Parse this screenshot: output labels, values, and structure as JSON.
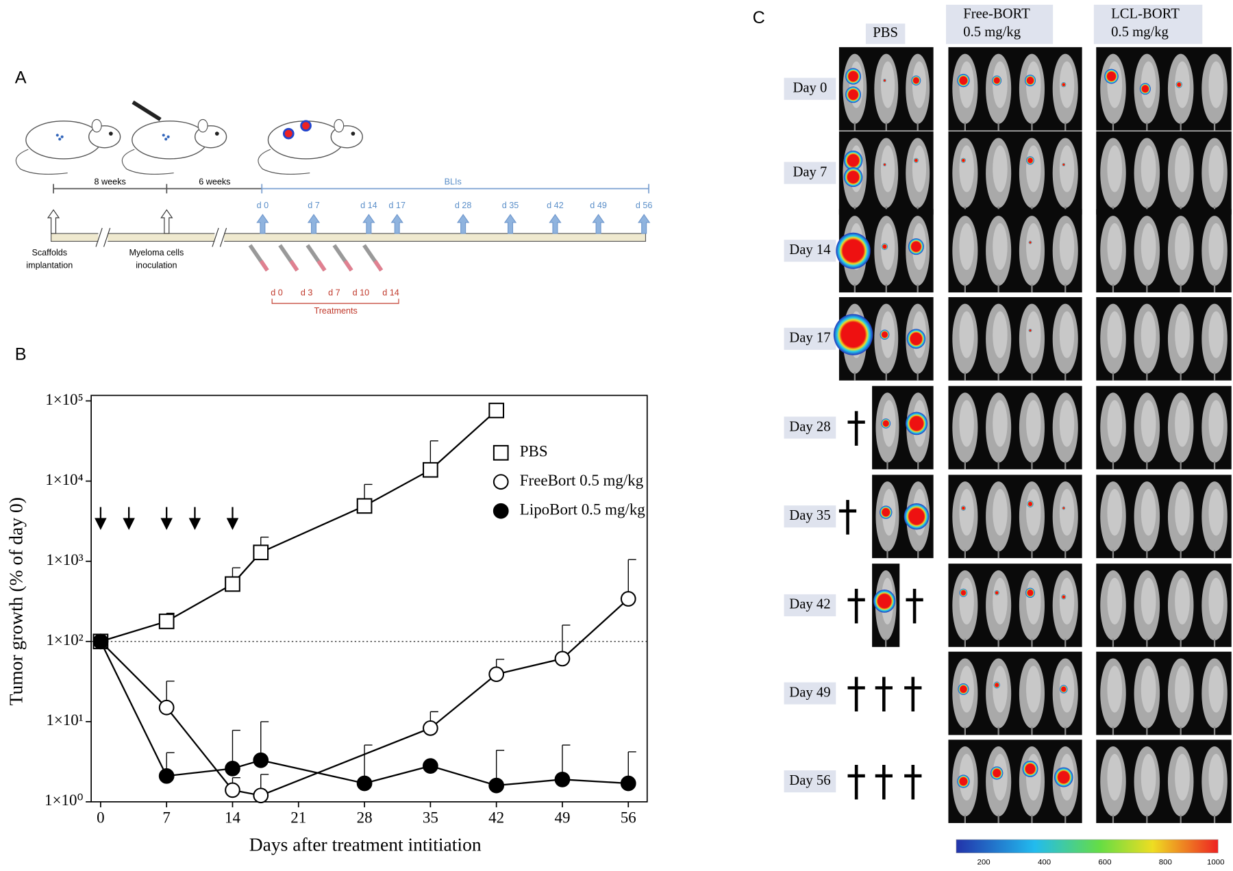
{
  "panel_a": {
    "label": "A",
    "durations": [
      "8 weeks",
      "6 weeks"
    ],
    "bli_label": "BLIs",
    "bli_days": [
      "d 0",
      "d 7",
      "d 14",
      "d 17",
      "d 28",
      "d 35",
      "d 42",
      "d 49",
      "d 56"
    ],
    "events": [
      {
        "lines": [
          "Scaffolds",
          "implantation"
        ]
      },
      {
        "lines": [
          "Myeloma cells",
          "inoculation"
        ]
      }
    ],
    "treatment_days": [
      "d 0",
      "d 3",
      "d 7",
      "d 10",
      "d 14"
    ],
    "treatments_label": "Treatments"
  },
  "chart_data": {
    "type": "line",
    "panel_label": "B",
    "x_label": "Days after treatment intitiation",
    "y_label": "Tumor growth (% of day 0)",
    "log_y": true,
    "xlim": [
      -1,
      58
    ],
    "ylim": [
      1,
      100000
    ],
    "xticks": [
      0,
      7,
      14,
      21,
      28,
      35,
      42,
      49,
      56
    ],
    "yticks": [
      {
        "value": 1,
        "label": "1×10⁰"
      },
      {
        "value": 10,
        "label": "1×10¹"
      },
      {
        "value": 100,
        "label": "1×10²"
      },
      {
        "value": 1000,
        "label": "1×10³"
      },
      {
        "value": 10000,
        "label": "1×10⁴"
      },
      {
        "value": 100000,
        "label": "1×10⁵"
      }
    ],
    "reference_line": 100,
    "treatment_arrows": [
      0,
      3,
      7,
      10,
      14
    ],
    "legend": "upper right",
    "series": [
      {
        "name": "PBS",
        "marker": "square",
        "filled": false,
        "color": "#000000",
        "x": [
          0,
          7,
          14,
          17,
          28,
          35,
          42
        ],
        "values": [
          100,
          178,
          520,
          1290,
          4900,
          13800,
          76000
        ],
        "errors": [
          0,
          47,
          310,
          710,
          4200,
          18000,
          null
        ]
      },
      {
        "name": "FreeBort 0.5 mg/kg",
        "marker": "circle",
        "filled": false,
        "color": "#000000",
        "x": [
          0,
          7,
          14,
          17,
          35,
          42,
          49,
          56
        ],
        "values": [
          100,
          15,
          1.4,
          1.2,
          8.3,
          39,
          61,
          340
        ],
        "errors": [
          0,
          17,
          0.6,
          1.0,
          5,
          21,
          99,
          710
        ]
      },
      {
        "name": "LipoBort 0.5 mg/kg",
        "marker": "circle",
        "filled": true,
        "color": "#000000",
        "x": [
          0,
          7,
          14,
          17,
          28,
          35,
          42,
          49,
          56
        ],
        "values": [
          100,
          2.1,
          2.6,
          3.3,
          1.7,
          2.8,
          1.6,
          1.9,
          1.7
        ],
        "errors": [
          0,
          2.0,
          5.2,
          6.7,
          3.4,
          null,
          2.8,
          3.2,
          2.5
        ]
      }
    ]
  },
  "panel_c": {
    "label": "C",
    "columns": [
      {
        "lines": [
          "PBS"
        ]
      },
      {
        "lines": [
          "Free-BORT",
          "0.5 mg/kg"
        ]
      },
      {
        "lines": [
          "LCL-BORT",
          "0.5 mg/kg"
        ]
      }
    ],
    "rows": [
      "Day 0",
      "Day 7",
      "Day 14",
      "Day 17",
      "Day 28",
      "Day 35",
      "Day 42",
      "Day 49",
      "Day 56"
    ],
    "colorbar_ticks": [
      "200",
      "400",
      "600",
      "800",
      "1000"
    ]
  }
}
